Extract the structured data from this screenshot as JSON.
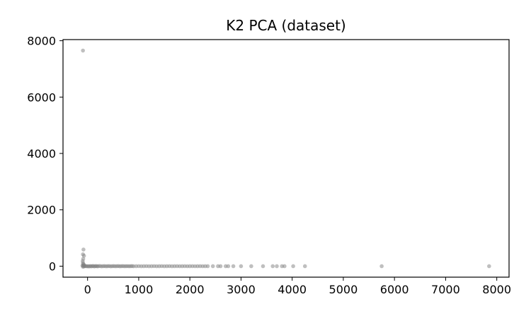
{
  "chart_data": {
    "type": "scatter",
    "title": "K2 PCA (dataset)",
    "xlabel": "",
    "ylabel": "",
    "xlim": [
      -480,
      8240
    ],
    "ylim": [
      -390,
      8040
    ],
    "x_ticks": [
      0,
      1000,
      2000,
      3000,
      4000,
      5000,
      6000,
      7000,
      8000
    ],
    "y_ticks": [
      0,
      2000,
      4000,
      6000,
      8000
    ],
    "grid": false,
    "legend": "none",
    "marker_color": "#808080",
    "marker_opacity": 0.5,
    "series": [
      {
        "points": [
          [
            -90,
            7650
          ],
          [
            -80,
            590
          ],
          [
            -90,
            420
          ],
          [
            -70,
            370
          ],
          [
            -85,
            260
          ],
          [
            -95,
            180
          ],
          [
            -90,
            110
          ],
          [
            -80,
            70
          ],
          [
            -70,
            40
          ],
          [
            -100,
            20
          ],
          [
            -60,
            10
          ],
          [
            -90,
            -20
          ],
          [
            -75,
            -10
          ],
          [
            -85,
            30
          ],
          [
            -50,
            0
          ],
          [
            -30,
            5
          ],
          [
            -10,
            -5
          ],
          [
            10,
            0
          ],
          [
            30,
            -10
          ],
          [
            50,
            5
          ],
          [
            70,
            -5
          ],
          [
            90,
            0
          ],
          [
            110,
            8
          ],
          [
            130,
            -8
          ],
          [
            150,
            0
          ],
          [
            170,
            5
          ],
          [
            190,
            -5
          ],
          [
            210,
            0
          ],
          [
            240,
            6
          ],
          [
            270,
            -6
          ],
          [
            300,
            0
          ],
          [
            330,
            4
          ],
          [
            360,
            -4
          ],
          [
            390,
            0
          ],
          [
            420,
            5
          ],
          [
            450,
            -5
          ],
          [
            480,
            0
          ],
          [
            510,
            3
          ],
          [
            540,
            -3
          ],
          [
            570,
            0
          ],
          [
            600,
            4
          ],
          [
            630,
            -4
          ],
          [
            660,
            0
          ],
          [
            690,
            3
          ],
          [
            720,
            -3
          ],
          [
            750,
            0
          ],
          [
            780,
            2
          ],
          [
            810,
            -2
          ],
          [
            840,
            0
          ],
          [
            870,
            3
          ],
          [
            900,
            -3
          ],
          [
            950,
            0
          ],
          [
            1000,
            2
          ],
          [
            1050,
            -2
          ],
          [
            1100,
            0
          ],
          [
            1150,
            2
          ],
          [
            1200,
            -2
          ],
          [
            1250,
            0
          ],
          [
            1300,
            2
          ],
          [
            1350,
            -2
          ],
          [
            1400,
            0
          ],
          [
            1450,
            2
          ],
          [
            1500,
            -2
          ],
          [
            1550,
            0
          ],
          [
            1600,
            2
          ],
          [
            1650,
            -2
          ],
          [
            1700,
            0
          ],
          [
            1750,
            1
          ],
          [
            1800,
            -1
          ],
          [
            1850,
            0
          ],
          [
            1900,
            1
          ],
          [
            1950,
            -1
          ],
          [
            2000,
            0
          ],
          [
            2050,
            1
          ],
          [
            2100,
            -1
          ],
          [
            2150,
            0
          ],
          [
            2200,
            1
          ],
          [
            2250,
            -1
          ],
          [
            2300,
            0
          ],
          [
            2350,
            0
          ],
          [
            2450,
            0
          ],
          [
            2550,
            0
          ],
          [
            2600,
            0
          ],
          [
            2700,
            0
          ],
          [
            2750,
            0
          ],
          [
            2850,
            0
          ],
          [
            3000,
            0
          ],
          [
            3200,
            0
          ],
          [
            3430,
            0
          ],
          [
            3620,
            0
          ],
          [
            3700,
            0
          ],
          [
            3800,
            0
          ],
          [
            3850,
            0
          ],
          [
            4020,
            0
          ],
          [
            4250,
            0
          ],
          [
            5750,
            0
          ],
          [
            7850,
            0
          ]
        ]
      }
    ]
  }
}
